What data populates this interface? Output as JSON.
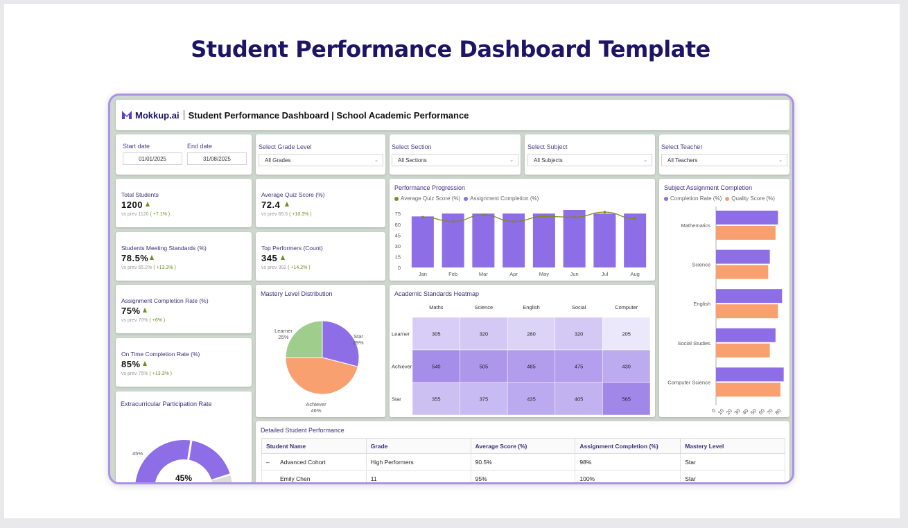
{
  "page_title": "Student Performance Dashboard Template",
  "header": {
    "brand": "Mokkup.ai",
    "title": "Student Performance Dashboard | School Academic Performance"
  },
  "filters": {
    "start_label": "Start date",
    "start_value": "01/01/2025",
    "end_label": "End date",
    "end_value": "31/08/2025",
    "grade": {
      "label": "Select Grade Level",
      "value": "All Grades"
    },
    "section": {
      "label": "Select Section",
      "value": "All Sections"
    },
    "subject": {
      "label": "Select Subject",
      "value": "All Subjects"
    },
    "teacher": {
      "label": "Select Teacher",
      "value": "All Teachers"
    }
  },
  "kpis": [
    {
      "label": "Total Students",
      "value": "1200",
      "prev": "vs prev 1120",
      "change": "( +7.1% )"
    },
    {
      "label": "Average Quiz Score (%)",
      "value": "72.4",
      "prev": "vs prev 65.6",
      "change": "( +10.3% )"
    },
    {
      "label": "Students Meeting Standards (%)",
      "value": "78.5%",
      "prev": "vs prev 65.2%",
      "change": "( +13.3% )"
    },
    {
      "label": "Top Performers (Count)",
      "value": "345",
      "prev": "vs prev 302",
      "change": "( +14.2% )"
    },
    {
      "label": "Assignment Completion Rate (%)",
      "value": "75%",
      "prev": "vs prev 70%",
      "change": "( +6% )"
    },
    {
      "label": "On Time Completion Rate (%)",
      "value": "85%",
      "prev": "vs prev 75%",
      "change": "( +13.3% )"
    }
  ],
  "extracurricular": {
    "title": "Extracurricular Participation Rate",
    "center": "45%",
    "side_label": "45%",
    "value": 45
  },
  "colors": {
    "purple": "#8d6ee6",
    "orange": "#f8a070",
    "green": "#9fce8c",
    "olive": "#7f8a1c",
    "title": "#1c1464",
    "frame": "#a893e6"
  },
  "chart_data": [
    {
      "id": "performance-progression",
      "type": "bar",
      "title": "Performance Progression",
      "categories": [
        "Jan",
        "Feb",
        "Mar",
        "Apr",
        "May",
        "Jun",
        "Jul",
        "Aug"
      ],
      "series": [
        {
          "name": "Average Quiz Score (%)",
          "type": "line",
          "values": [
            70,
            64,
            73,
            64,
            71,
            70,
            77,
            68
          ]
        },
        {
          "name": "Assignment Completion (%)",
          "type": "bar",
          "values": [
            71,
            75,
            75,
            75,
            75,
            80,
            75,
            75
          ]
        }
      ],
      "ylim": [
        0,
        80
      ],
      "yticks": [
        0,
        15,
        30,
        45,
        60,
        75
      ]
    },
    {
      "id": "subject-assignment-completion",
      "type": "bar",
      "orientation": "horizontal",
      "title": "Subject Assignment Completion",
      "categories": [
        "Mathematics",
        "Science",
        "English",
        "Social Studies",
        "Computer Science"
      ],
      "series": [
        {
          "name": "Completion Rate (%)",
          "values": [
            76,
            66,
            81,
            73,
            83
          ]
        },
        {
          "name": "Quality Score (%)",
          "values": [
            73,
            64,
            76,
            66,
            79
          ]
        }
      ],
      "xlim": [
        0,
        85
      ],
      "xticks": [
        0,
        10,
        20,
        30,
        40,
        50,
        60,
        70,
        80
      ]
    },
    {
      "id": "mastery-level-distribution",
      "type": "pie",
      "title": "Mastery Level Distribution",
      "slices": [
        {
          "label": "Star",
          "value": 29,
          "display": "29%"
        },
        {
          "label": "Achiever",
          "value": 46,
          "display": "46%"
        },
        {
          "label": "Learner",
          "value": 25,
          "display": "25%"
        }
      ]
    },
    {
      "id": "academic-standards-heatmap",
      "type": "heatmap",
      "title": "Academic Standards Heatmap",
      "columns": [
        "Maths",
        "Science",
        "English",
        "Social",
        "Computer"
      ],
      "rows": [
        "Learner",
        "Achiever",
        "Star"
      ],
      "values": [
        [
          305,
          320,
          280,
          320,
          205
        ],
        [
          540,
          505,
          485,
          475,
          430
        ],
        [
          355,
          375,
          435,
          405,
          565
        ]
      ]
    }
  ],
  "table": {
    "title": "Detailed Student Performance",
    "columns": [
      "Student Name",
      "Grade",
      "Average Score (%)",
      "Assignment Completion (%)",
      "Mastery Level"
    ],
    "rows": [
      {
        "prefix": "–",
        "name": "Advanced Cohort",
        "grade": "High Performers",
        "avg": "90.5%",
        "completion": "98%",
        "mastery": "Star"
      },
      {
        "prefix": "",
        "name": "Emily Chen",
        "grade": "11",
        "avg": "95%",
        "completion": "100%",
        "mastery": "Star"
      }
    ]
  }
}
